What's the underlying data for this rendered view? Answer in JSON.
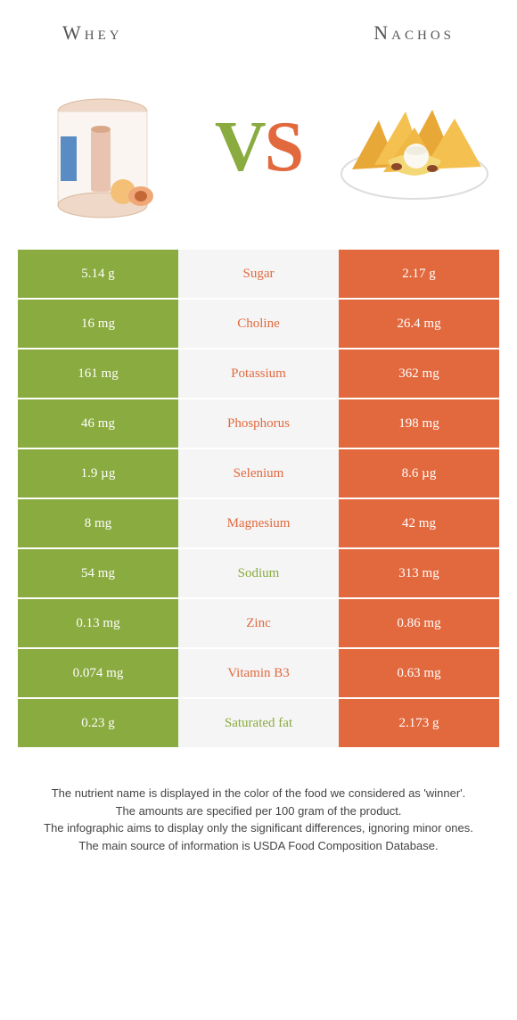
{
  "header": {
    "left_title": "Whey",
    "right_title": "Nachos"
  },
  "vs": {
    "v": "V",
    "s": "S"
  },
  "colors": {
    "left": "#8aab3f",
    "right": "#e2693e",
    "mid_bg": "#f5f5f5",
    "text": "#333333"
  },
  "rows": [
    {
      "left": "5.14 g",
      "label": "Sugar",
      "right": "2.17 g",
      "winner": "right"
    },
    {
      "left": "16 mg",
      "label": "Choline",
      "right": "26.4 mg",
      "winner": "right"
    },
    {
      "left": "161 mg",
      "label": "Potassium",
      "right": "362 mg",
      "winner": "right"
    },
    {
      "left": "46 mg",
      "label": "Phosphorus",
      "right": "198 mg",
      "winner": "right"
    },
    {
      "left": "1.9 µg",
      "label": "Selenium",
      "right": "8.6 µg",
      "winner": "right"
    },
    {
      "left": "8 mg",
      "label": "Magnesium",
      "right": "42 mg",
      "winner": "right"
    },
    {
      "left": "54 mg",
      "label": "Sodium",
      "right": "313 mg",
      "winner": "left"
    },
    {
      "left": "0.13 mg",
      "label": "Zinc",
      "right": "0.86 mg",
      "winner": "right"
    },
    {
      "left": "0.074 mg",
      "label": "Vitamin B3",
      "right": "0.63 mg",
      "winner": "right"
    },
    {
      "left": "0.23 g",
      "label": "Saturated fat",
      "right": "2.173 g",
      "winner": "left"
    }
  ],
  "footnote": {
    "line1": "The nutrient name is displayed in the color of the food we considered as 'winner'.",
    "line2": "The amounts are specified per 100 gram of the product.",
    "line3": "The infographic aims to display only the significant differences, ignoring minor ones.",
    "line4": "The main source of information is USDA Food Composition Database."
  }
}
